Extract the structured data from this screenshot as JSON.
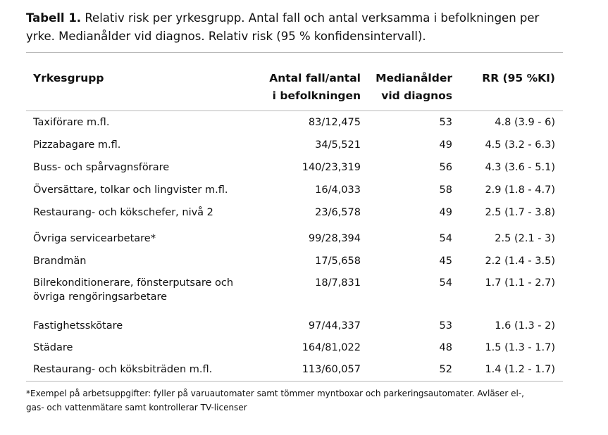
{
  "caption": {
    "label": "Tabell 1.",
    "text_line1": " Relativ risk per yrkesgrupp. Antal fall och antal verksamma i befolkningen per",
    "text_line2": "yrke. Medianålder vid diagnos. Relativ risk (95 % konfidensintervall)."
  },
  "table": {
    "headers": {
      "occupation": "Yrkesgrupp",
      "cases_line1": "Antal fall/antal",
      "cases_line2": "i befolkningen",
      "age_line1": "Medianålder",
      "age_line2": "vid diagnos",
      "rr": "RR (95 %KI)"
    },
    "rows": [
      {
        "occupation": "Taxiförare m.fl.",
        "occupation_line2": "",
        "cases": "83/12,475",
        "age": "53",
        "rr": "4.8 (3.9 - 6)"
      },
      {
        "occupation": "Pizzabagare m.fl.",
        "occupation_line2": "",
        "cases": "34/5,521",
        "age": "49",
        "rr": "4.5 (3.2 - 6.3)"
      },
      {
        "occupation": "Buss- och spårvagnsförare",
        "occupation_line2": "",
        "cases": "140/23,319",
        "age": "56",
        "rr": "4.3 (3.6 - 5.1)"
      },
      {
        "occupation": "Översättare, tolkar och lingvister m.fl.",
        "occupation_line2": "",
        "cases": "16/4,033",
        "age": "58",
        "rr": "2.9 (1.8 - 4.7)"
      },
      {
        "occupation": "Restaurang- och kökschefer, nivå 2",
        "occupation_line2": "",
        "cases": "23/6,578",
        "age": "49",
        "rr": "2.5 (1.7 - 3.8)"
      },
      {
        "occupation": "Övriga servicearbetare*",
        "occupation_line2": "",
        "cases": "99/28,394",
        "age": "54",
        "rr": "2.5 (2.1 - 3)"
      },
      {
        "occupation": "Brandmän",
        "occupation_line2": "",
        "cases": "17/5,658",
        "age": "45",
        "rr": "2.2 (1.4 - 3.5)"
      },
      {
        "occupation": "Bilrekonditionerare, fönsterputsare och",
        "occupation_line2": "övriga rengöringsarbetare",
        "cases": "18/7,831",
        "age": "54",
        "rr": "1.7 (1.1 - 2.7)"
      },
      {
        "occupation": "Fastighetsskötare",
        "occupation_line2": "",
        "cases": "97/44,337",
        "age": "53",
        "rr": "1.6 (1.3 - 2)"
      },
      {
        "occupation": "Städare",
        "occupation_line2": "",
        "cases": "164/81,022",
        "age": "48",
        "rr": "1.5 (1.3 - 1.7)"
      },
      {
        "occupation": "Restaurang- och köksbiträden m.fl.",
        "occupation_line2": "",
        "cases": "113/60,057",
        "age": "52",
        "rr": "1.4 (1.2 - 1.7)"
      }
    ]
  },
  "footnote": {
    "line1": "*Exempel på arbetsuppgifter: fyller på varuautomater samt tömmer myntboxar och parkeringsautomater. Avläser el-,",
    "line2": "gas- och vattenmätare samt kontrollerar TV-licenser"
  }
}
